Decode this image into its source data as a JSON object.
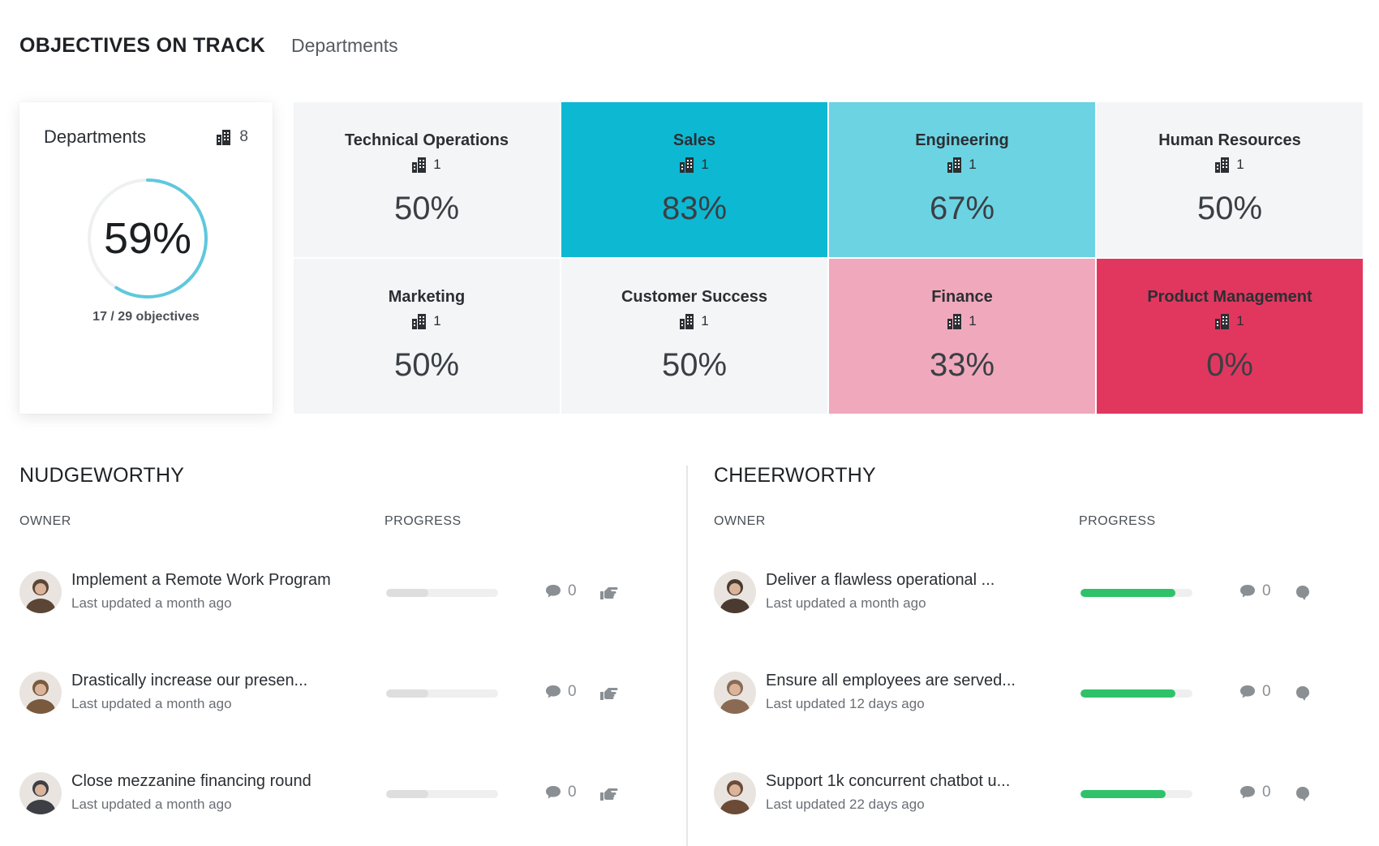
{
  "header": {
    "title": "OBJECTIVES ON TRACK",
    "subtitle": "Departments"
  },
  "summary": {
    "title": "Departments",
    "count": "8",
    "percent": "59%",
    "progress": 0.59,
    "objectives": "17 / 29 objectives"
  },
  "departments": [
    {
      "name": "Technical Operations",
      "count": "1",
      "percent": "50%",
      "color": "#f4f5f7"
    },
    {
      "name": "Sales",
      "count": "1",
      "percent": "83%",
      "color": "#0db8d3"
    },
    {
      "name": "Engineering",
      "count": "1",
      "percent": "67%",
      "color": "#6cd3e3"
    },
    {
      "name": "Human Resources",
      "count": "1",
      "percent": "50%",
      "color": "#f4f5f7"
    },
    {
      "name": "Marketing",
      "count": "1",
      "percent": "50%",
      "color": "#f4f5f7"
    },
    {
      "name": "Customer Success",
      "count": "1",
      "percent": "50%",
      "color": "#f4f5f7"
    },
    {
      "name": "Finance",
      "count": "1",
      "percent": "33%",
      "color": "#f0a9bc"
    },
    {
      "name": "Product Management",
      "count": "1",
      "percent": "0%",
      "color": "#e1375f"
    }
  ],
  "nudgeworthy": {
    "title": "NUDGEWORTHY",
    "owner_label": "OWNER",
    "progress_label": "PROGRESS",
    "items": [
      {
        "name": "Implement a Remote Work Program",
        "updated": "Last updated a month ago",
        "progress": 0.38,
        "comments": "0",
        "avatar_color": "#5b4636"
      },
      {
        "name": "Drastically increase our presen...",
        "updated": "Last updated a month ago",
        "progress": 0.38,
        "comments": "0",
        "avatar_color": "#7a5a3e"
      },
      {
        "name": "Close mezzanine financing round",
        "updated": "Last updated a month ago",
        "progress": 0.38,
        "comments": "0",
        "avatar_color": "#3d3f44"
      }
    ]
  },
  "cheerworthy": {
    "title": "CHEERWORTHY",
    "owner_label": "OWNER",
    "progress_label": "PROGRESS",
    "items": [
      {
        "name": "Deliver a flawless operational ...",
        "updated": "Last updated a month ago",
        "progress": 0.85,
        "comments": "0",
        "avatar_color": "#4a3a30"
      },
      {
        "name": "Ensure all employees are served...",
        "updated": "Last updated 12 days ago",
        "progress": 0.85,
        "comments": "0",
        "avatar_color": "#8a6a52"
      },
      {
        "name": "Support 1k concurrent chatbot u...",
        "updated": "Last updated 22 days ago",
        "progress": 0.76,
        "comments": "0",
        "avatar_color": "#6b4a36"
      }
    ]
  },
  "colors": {
    "gauge": "#5fc8dc",
    "gauge_track": "#eef0f2",
    "nudge_fill": "#dedede",
    "cheer_fill": "#2fc26b"
  },
  "icons": {
    "building": "building-icon",
    "comment": "comment-bubble-icon",
    "nudge": "nudge-hand-icon",
    "cheer": "cheer-icon"
  }
}
